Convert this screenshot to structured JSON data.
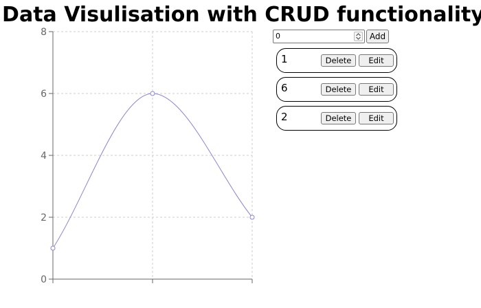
{
  "page": {
    "title": "Data Visulisation with CRUD functionality"
  },
  "controls": {
    "input_value": "0",
    "add_label": "Add"
  },
  "items": [
    {
      "value": "1",
      "delete_label": "Delete",
      "edit_label": "Edit"
    },
    {
      "value": "6",
      "delete_label": "Delete",
      "edit_label": "Edit"
    },
    {
      "value": "2",
      "delete_label": "Delete",
      "edit_label": "Edit"
    }
  ],
  "chart_data": {
    "type": "line",
    "title": "",
    "xlabel": "",
    "ylabel": "",
    "x": [
      0,
      1,
      2
    ],
    "series": [
      {
        "values": [
          1,
          6,
          2
        ]
      }
    ],
    "ylim": [
      0,
      8
    ],
    "yticks": [
      "0",
      "2",
      "4",
      "6",
      "8"
    ],
    "grid": true,
    "line_color": "#8884d8",
    "grid_color": "#cccccc",
    "axis_color": "#666666"
  }
}
